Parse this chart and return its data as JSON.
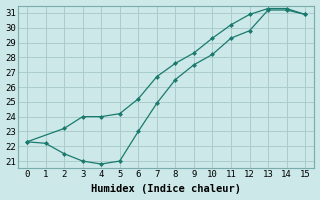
{
  "xlabel": "Humidex (Indice chaleur)",
  "bg_color": "#cce8e8",
  "grid_color": "#aacccc",
  "line_color": "#1a7a6e",
  "marker": "D",
  "marker_size": 2.0,
  "line_width": 0.9,
  "xlim": [
    -0.5,
    15.5
  ],
  "ylim": [
    20.5,
    31.5
  ],
  "xticks": [
    0,
    1,
    2,
    3,
    4,
    5,
    6,
    7,
    8,
    9,
    10,
    11,
    12,
    13,
    14,
    15
  ],
  "yticks": [
    21,
    22,
    23,
    24,
    25,
    26,
    27,
    28,
    29,
    30,
    31
  ],
  "line1_x": [
    0,
    1,
    2,
    3,
    4,
    5,
    6,
    7,
    8,
    9,
    10,
    11,
    12,
    13,
    14,
    15
  ],
  "line1_y": [
    22.3,
    22.2,
    21.5,
    21.0,
    20.8,
    21.0,
    23.0,
    24.9,
    26.5,
    27.5,
    28.2,
    29.3,
    29.8,
    31.2,
    31.2,
    30.9
  ],
  "line2_x": [
    0,
    2,
    3,
    4,
    5,
    6,
    7,
    8,
    9,
    10,
    11,
    12,
    13,
    14,
    15
  ],
  "line2_y": [
    22.3,
    23.2,
    24.0,
    24.0,
    24.2,
    25.2,
    26.7,
    27.6,
    28.3,
    29.3,
    30.2,
    30.9,
    31.3,
    31.3,
    30.9
  ],
  "font_family": "monospace",
  "tick_fontsize": 6.5,
  "label_fontsize": 7.5
}
